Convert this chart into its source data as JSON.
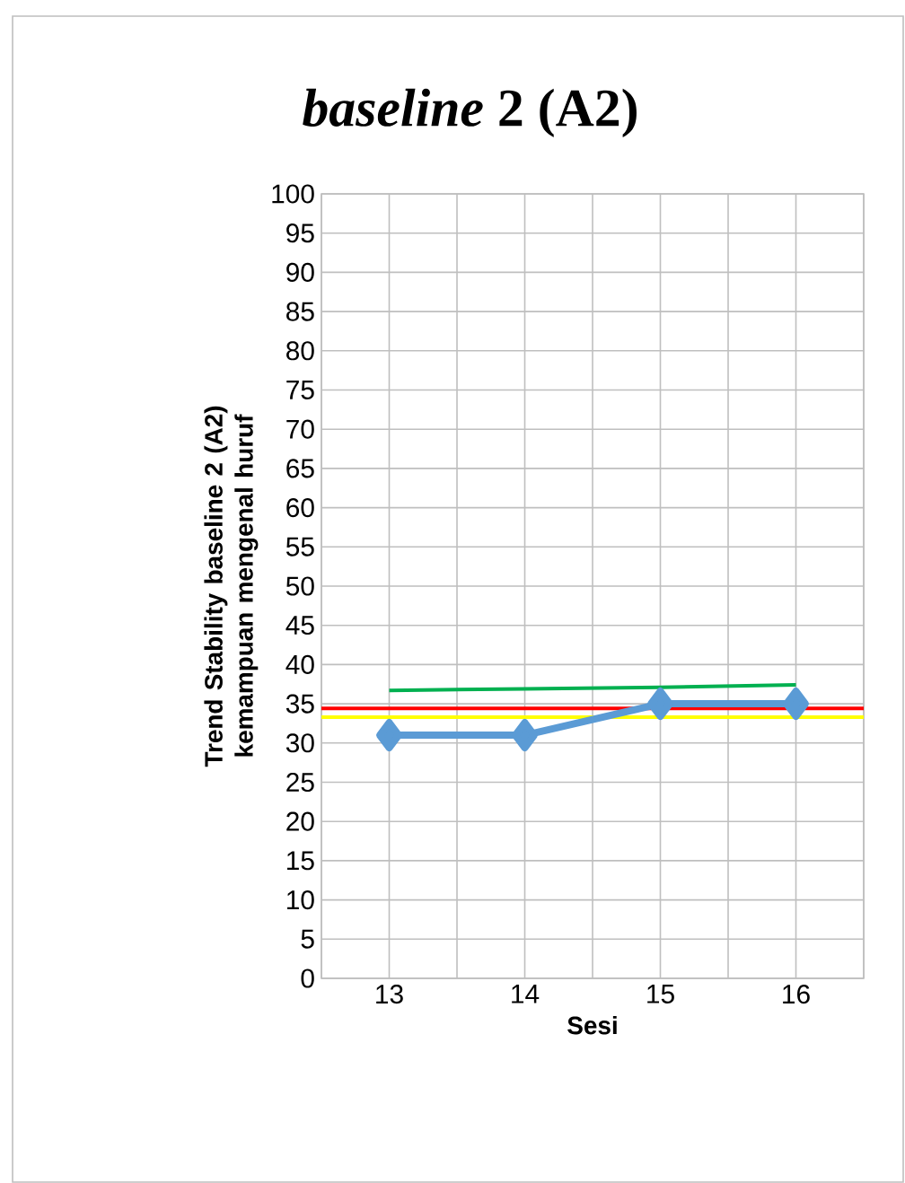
{
  "chart_data": {
    "type": "line",
    "title": "*baseline* 2 (A2)",
    "xlabel": "Sesi",
    "ylabel": "Trend Stability baseline 2 (A2) kemampuan mengenal huruf",
    "x": [
      13,
      14,
      15,
      16
    ],
    "xlim": [
      12.5,
      16.5
    ],
    "xticks": [
      {
        "value": 12.5,
        "label": null
      },
      13,
      {
        "value": 13.5,
        "label": null
      },
      14,
      {
        "value": 14.5,
        "label": null
      },
      15,
      {
        "value": 15.5,
        "label": null
      },
      16,
      {
        "value": 16.5,
        "label": null
      }
    ],
    "ylim": [
      0,
      100
    ],
    "yticks": [
      0,
      5,
      10,
      15,
      20,
      25,
      30,
      35,
      40,
      45,
      50,
      55,
      60,
      65,
      70,
      75,
      80,
      85,
      90,
      95,
      100
    ],
    "grid": true,
    "series": [
      {
        "color": "#5b9bd5",
        "values": [
          31,
          31,
          35,
          35
        ],
        "marker": "diamond"
      },
      {
        "color": "#00b050",
        "values": [
          36.7,
          36.9,
          37.1,
          37.4
        ],
        "marker": "none"
      }
    ],
    "ref_lines": [
      {
        "axis": "y",
        "value": 34.4,
        "color": "#ff0000"
      },
      {
        "axis": "y",
        "value": 33.3,
        "color": "#ffff00"
      }
    ]
  }
}
